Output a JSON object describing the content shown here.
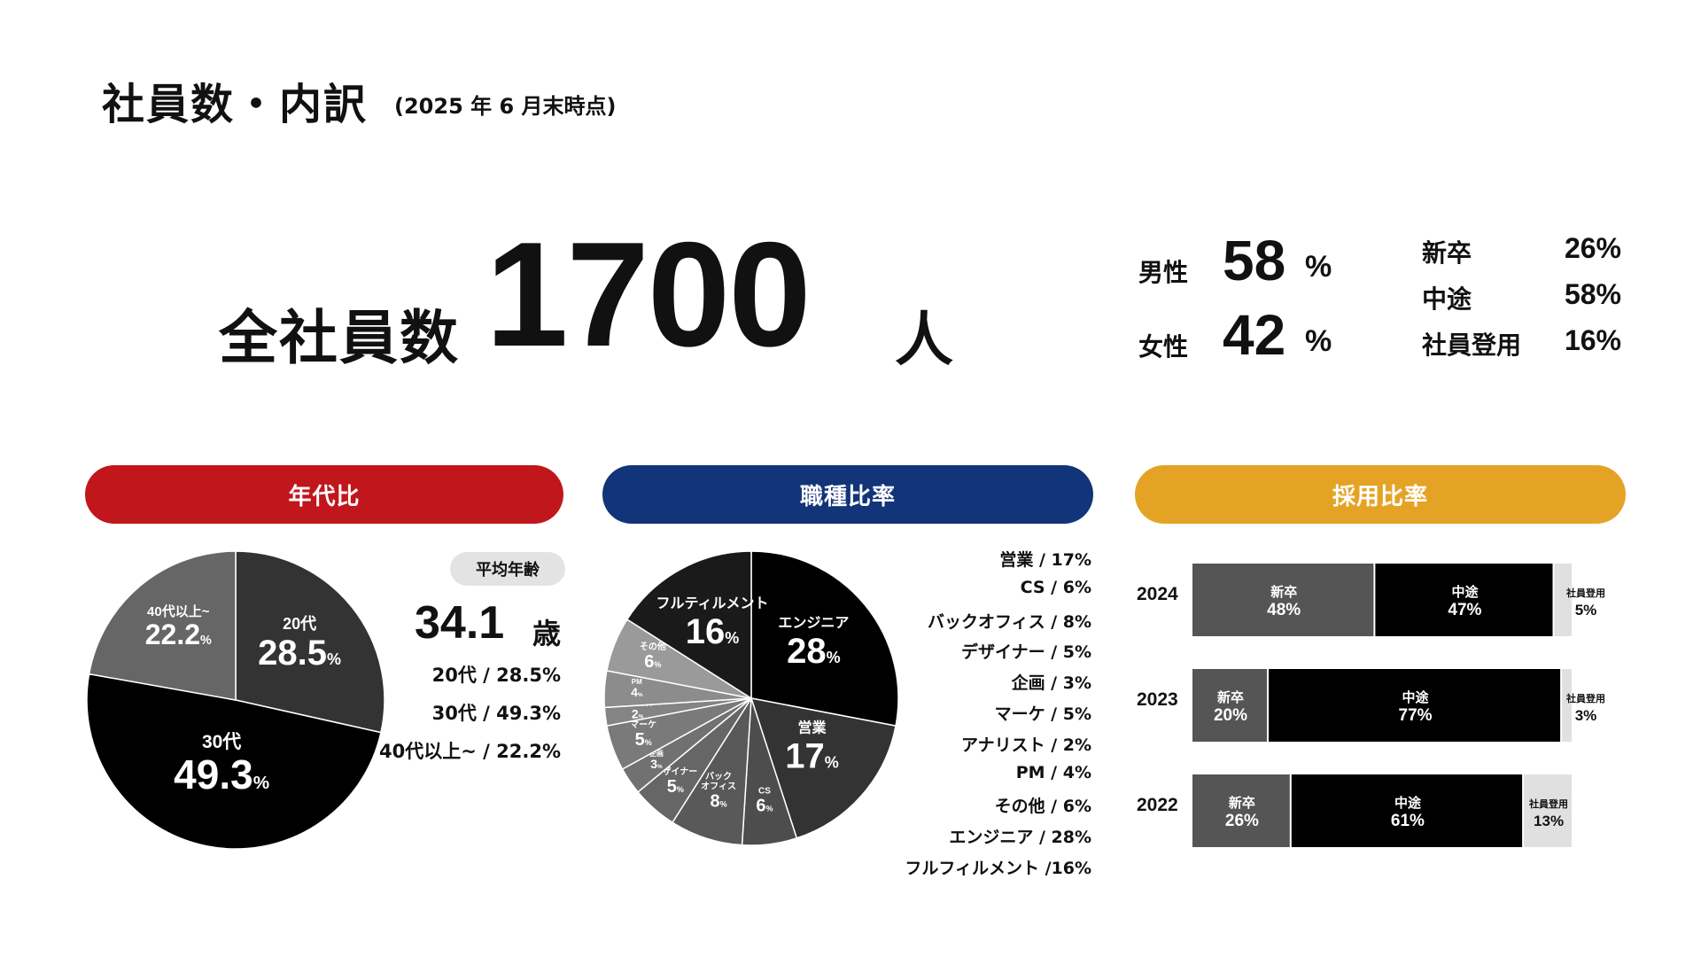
{
  "header": {
    "title": "社員数・内訳",
    "subtitle": "(2025 年 6 月末時点)"
  },
  "total": {
    "label": "全社員数",
    "value": "1700",
    "unit": "人"
  },
  "gender": [
    {
      "label": "男性",
      "value": "58",
      "unit": "%"
    },
    {
      "label": "女性",
      "value": "42",
      "unit": "%"
    }
  ],
  "hire_summary": [
    {
      "label": "新卒",
      "value": "26%"
    },
    {
      "label": "中途",
      "value": "58%"
    },
    {
      "label": "社員登用",
      "value": "16%"
    }
  ],
  "sections": {
    "age": {
      "title": "年代比",
      "color": "#c1161c"
    },
    "job": {
      "title": "職種比率",
      "color": "#123478"
    },
    "hire": {
      "title": "採用比率",
      "color": "#e5a325"
    }
  },
  "average_age": {
    "label": "平均年齢",
    "value": "34.1",
    "unit": "歳"
  },
  "age_legend": [
    "20代 / 28.5%",
    "30代 / 49.3%",
    "40代以上~ / 22.2%"
  ],
  "job_legend": [
    "営業 / 17%",
    "CS / 6%",
    "バックオフィス / 8%",
    "デザイナー / 5%",
    "企画 / 3%",
    "マーケ / 5%",
    "アナリスト / 2%",
    "PM / 4%",
    "その他 / 6%",
    "エンジニア / 28%",
    "フルフィルメント /16%"
  ],
  "chart_data": [
    {
      "type": "pie",
      "title": "年代比",
      "slices": [
        {
          "label": "20代",
          "value": 28.5,
          "color": "#333333"
        },
        {
          "label": "30代",
          "value": 49.3,
          "color": "#000000"
        },
        {
          "label": "40代以上~",
          "value": 22.2,
          "color": "#666666"
        }
      ]
    },
    {
      "type": "pie",
      "title": "職種比率",
      "slices": [
        {
          "label": "エンジニア",
          "value": 28,
          "color": "#000000"
        },
        {
          "label": "営業",
          "value": 17,
          "color": "#333333"
        },
        {
          "label": "CS",
          "value": 6,
          "color": "#4d4d4d"
        },
        {
          "label": "バック オフィス",
          "value": 8,
          "color": "#595959"
        },
        {
          "label": "デザイナー",
          "value": 5,
          "color": "#666666"
        },
        {
          "label": "企画",
          "value": 3,
          "color": "#717171"
        },
        {
          "label": "マーケ",
          "value": 5,
          "color": "#7a7a7a"
        },
        {
          "label": "アナリスト",
          "value": 2,
          "color": "#848484"
        },
        {
          "label": "PM",
          "value": 4,
          "color": "#8c8c8c"
        },
        {
          "label": "その他",
          "value": 6,
          "color": "#9a9a9a"
        },
        {
          "label": "フルティルメント",
          "value": 16,
          "color": "#1a1a1a"
        }
      ]
    },
    {
      "type": "bar",
      "title": "採用比率",
      "stacked": true,
      "horizontal": true,
      "categories": [
        "2024",
        "2023",
        "2022"
      ],
      "series": [
        {
          "name": "新卒",
          "values": [
            48,
            20,
            26
          ],
          "color": "#555555"
        },
        {
          "name": "中途",
          "values": [
            47,
            77,
            61
          ],
          "color": "#000000"
        },
        {
          "name": "社員登用",
          "values": [
            5,
            3,
            13
          ],
          "color": "#e0e0e0"
        }
      ]
    }
  ]
}
